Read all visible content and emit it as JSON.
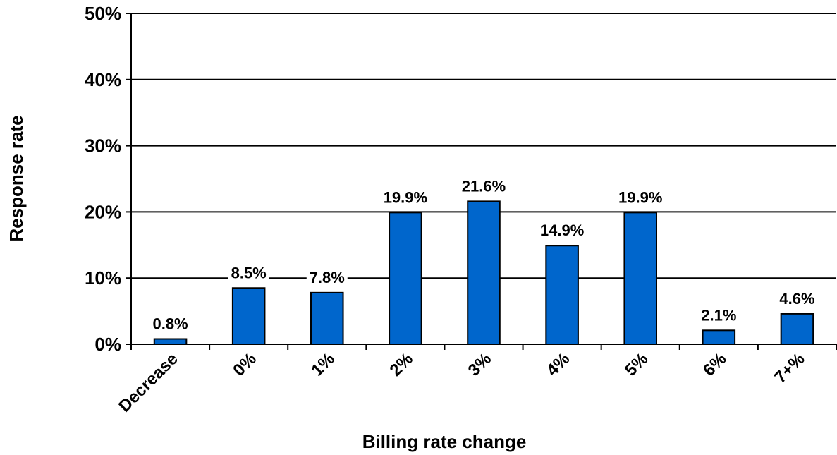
{
  "chart_data": {
    "type": "bar",
    "title": "",
    "xlabel": "Billing rate change",
    "ylabel": "Response rate",
    "categories": [
      "Decrease",
      "0%",
      "1%",
      "2%",
      "3%",
      "4%",
      "5%",
      "6%",
      "7+%"
    ],
    "values": [
      0.8,
      8.5,
      7.8,
      19.9,
      21.6,
      14.9,
      19.9,
      2.1,
      4.6
    ],
    "data_labels": [
      "0.8%",
      "8.5%",
      "7.8%",
      "19.9%",
      "21.6%",
      "14.9%",
      "19.9%",
      "2.1%",
      "4.6%"
    ],
    "ylim": [
      0,
      50
    ],
    "yticks": [
      0,
      10,
      20,
      30,
      40,
      50
    ],
    "ytick_labels": [
      "0%",
      "10%",
      "20%",
      "30%",
      "40%",
      "50%"
    ],
    "grid": true,
    "bar_color": "#0066CC",
    "legend": "none"
  }
}
